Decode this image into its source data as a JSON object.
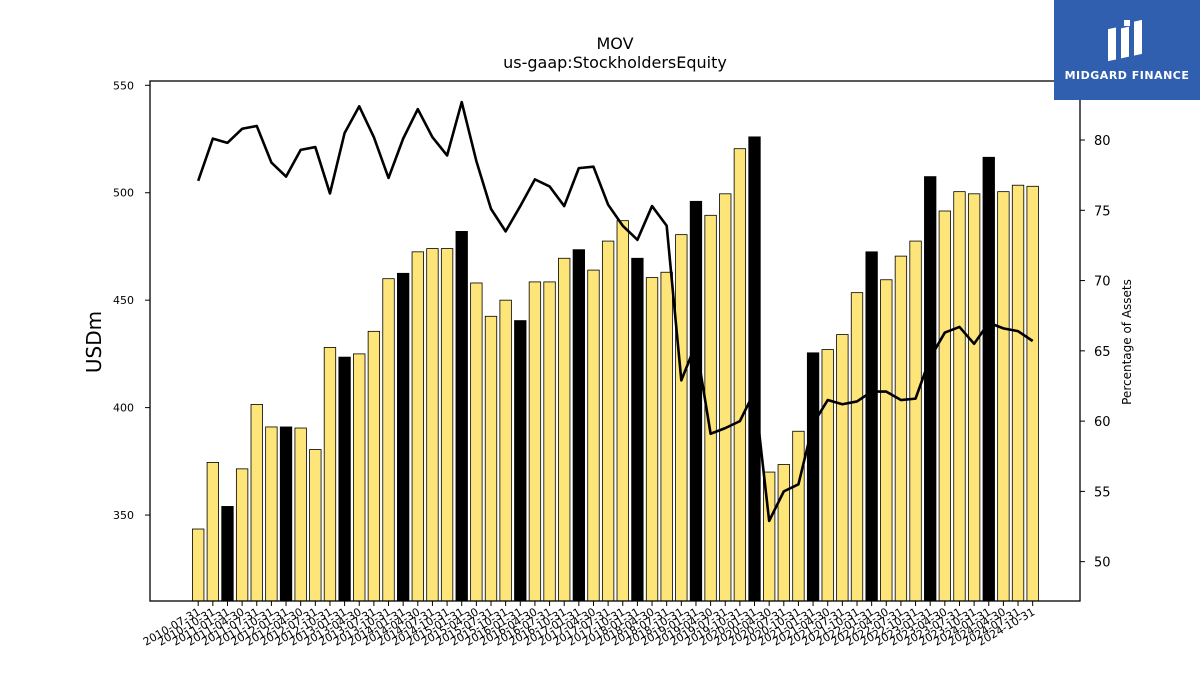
{
  "chart_data": {
    "type": "bar+line",
    "title": "MOV",
    "subtitle": "us-gaap:StockholdersEquity",
    "ylabel": "USDm",
    "y2label": "Percentage of Assets",
    "ylim": [
      310,
      552
    ],
    "y2lim": [
      47.2,
      84.2
    ],
    "yticks": [
      350,
      400,
      450,
      500,
      550
    ],
    "y2ticks": [
      50,
      55,
      60,
      65,
      70,
      75,
      80
    ],
    "bar_color": "#fde57a",
    "highlight_color": "#000000",
    "line_color": "#000000",
    "categories": [
      "2010-07-31",
      "2010-10-31",
      "2011-01-31",
      "2011-04-30",
      "2011-07-31",
      "2011-10-31",
      "2012-01-31",
      "2012-04-30",
      "2012-07-31",
      "2012-10-31",
      "2013-01-31",
      "2013-04-30",
      "2013-07-31",
      "2013-10-31",
      "2014-01-31",
      "2014-04-30",
      "2014-07-31",
      "2014-10-31",
      "2015-01-31",
      "2015-04-30",
      "2015-07-31",
      "2015-10-31",
      "2016-01-31",
      "2016-04-30",
      "2016-07-31",
      "2016-10-31",
      "2017-01-31",
      "2017-04-30",
      "2017-07-31",
      "2017-10-31",
      "2018-01-31",
      "2018-04-30",
      "2018-07-31",
      "2018-10-31",
      "2019-01-31",
      "2019-04-30",
      "2019-07-31",
      "2019-10-31",
      "2020-01-31",
      "2020-04-30",
      "2020-07-31",
      "2020-10-31",
      "2021-01-31",
      "2021-04-30",
      "2021-07-31",
      "2021-10-31",
      "2022-01-31",
      "2022-04-30",
      "2022-07-31",
      "2022-10-31",
      "2023-01-31",
      "2023-04-30",
      "2023-07-31",
      "2023-10-31",
      "2024-01-31",
      "2024-04-30",
      "2024-07-31",
      "2024-10-31"
    ],
    "bar_values": [
      343.5,
      374.5,
      354,
      371.5,
      401.5,
      391,
      391,
      390.5,
      380.5,
      428,
      423.5,
      425,
      435.5,
      460,
      462.5,
      472.5,
      474,
      474,
      482,
      458,
      442.5,
      450,
      440.5,
      458.5,
      458.5,
      469.5,
      473.5,
      464,
      477.5,
      487,
      469.5,
      460.5,
      463,
      480.5,
      496,
      489.5,
      499.5,
      520.5,
      526,
      370,
      373.5,
      389,
      425.5,
      427,
      434,
      453.5,
      472.5,
      459.5,
      470.5,
      477.5,
      507.5,
      491.5,
      500.5,
      499.5,
      516.5,
      500.5,
      503.5,
      503
    ],
    "highlighted_indices": [
      2,
      6,
      10,
      14,
      18,
      22,
      26,
      30,
      34,
      38,
      42,
      46,
      50,
      54
    ],
    "line_values": [
      77.1,
      80.1,
      79.8,
      80.8,
      81.0,
      78.4,
      77.4,
      79.3,
      79.5,
      76.2,
      80.5,
      82.4,
      80.2,
      77.3,
      80.1,
      82.2,
      80.2,
      78.9,
      82.7,
      78.5,
      75.1,
      73.5,
      75.3,
      77.2,
      76.7,
      75.3,
      78.0,
      78.1,
      75.4,
      73.9,
      72.9,
      75.3,
      73.9,
      62.9,
      65.5,
      59.1,
      59.5,
      60.0,
      62.1,
      52.9,
      55.0,
      55.5,
      59.8,
      61.5,
      61.2,
      61.4,
      62.1,
      62.1,
      61.5,
      61.6,
      64.5,
      66.3,
      66.7,
      65.5,
      67.0,
      66.6,
      66.4,
      65.7
    ]
  },
  "logo": {
    "text": "MIDGARD FINANCE"
  }
}
